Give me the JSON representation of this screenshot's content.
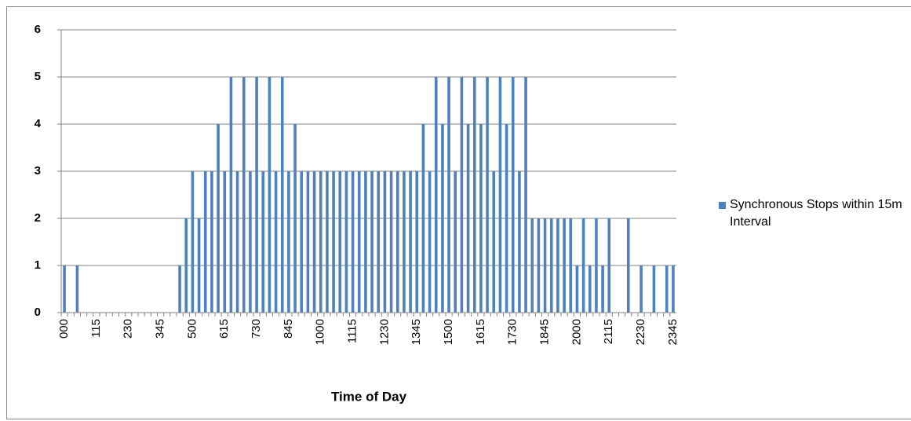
{
  "chart_data": {
    "type": "bar",
    "x_label": "Time of Day",
    "categories": [
      "000",
      null,
      null,
      null,
      null,
      "115",
      null,
      null,
      null,
      null,
      "230",
      null,
      null,
      null,
      null,
      "345",
      null,
      null,
      null,
      null,
      "500",
      null,
      null,
      null,
      null,
      "615",
      null,
      null,
      null,
      null,
      "730",
      null,
      null,
      null,
      null,
      "845",
      null,
      null,
      null,
      null,
      "1000",
      null,
      null,
      null,
      null,
      "1115",
      null,
      null,
      null,
      null,
      "1230",
      null,
      null,
      null,
      null,
      "1345",
      null,
      null,
      null,
      null,
      "1500",
      null,
      null,
      null,
      null,
      "1615",
      null,
      null,
      null,
      null,
      "1730",
      null,
      null,
      null,
      null,
      "1845",
      null,
      null,
      null,
      null,
      "2000",
      null,
      null,
      null,
      null,
      "2115",
      null,
      null,
      null,
      null,
      "2230",
      null,
      null,
      null,
      null,
      "2345"
    ],
    "series": [
      {
        "name": "Synchronous Stops within 15m Interval",
        "color": "#4f81bd",
        "values": [
          1,
          0,
          1,
          0,
          0,
          0,
          0,
          0,
          0,
          0,
          0,
          0,
          0,
          0,
          0,
          0,
          0,
          0,
          1,
          2,
          3,
          2,
          3,
          3,
          4,
          3,
          5,
          3,
          5,
          3,
          5,
          3,
          5,
          3,
          5,
          3,
          4,
          3,
          3,
          3,
          3,
          3,
          3,
          3,
          3,
          3,
          3,
          3,
          3,
          3,
          3,
          3,
          3,
          3,
          3,
          3,
          4,
          3,
          5,
          4,
          5,
          3,
          5,
          4,
          5,
          4,
          5,
          3,
          5,
          4,
          5,
          3,
          5,
          2,
          2,
          2,
          2,
          2,
          2,
          2,
          1,
          2,
          1,
          2,
          1,
          2,
          0,
          0,
          2,
          0,
          1,
          0,
          1,
          0,
          1,
          1
        ]
      }
    ],
    "ylim": [
      0,
      6
    ],
    "yticks": [
      0,
      1,
      2,
      3,
      4,
      5,
      6
    ],
    "grid": true,
    "legend": "right"
  }
}
